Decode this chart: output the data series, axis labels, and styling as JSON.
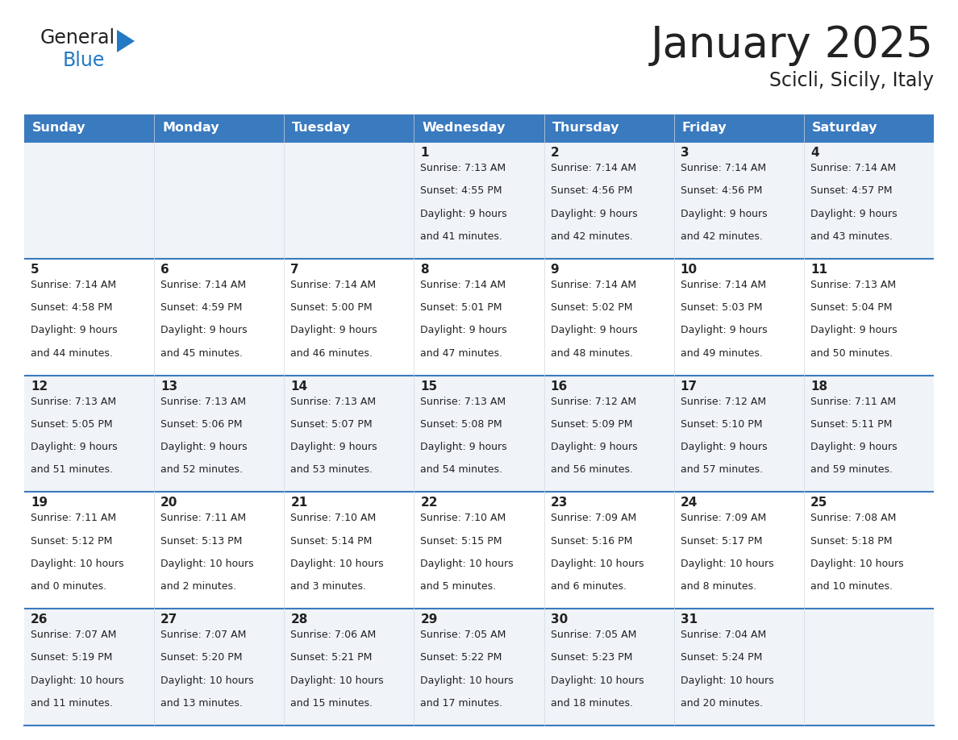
{
  "title": "January 2025",
  "subtitle": "Scicli, Sicily, Italy",
  "header_color": "#3a7abf",
  "header_text_color": "#ffffff",
  "cell_bg_row0": "#f0f4f8",
  "cell_bg_row1": "#ffffff",
  "cell_bg_row2": "#f0f4f8",
  "cell_bg_row3": "#ffffff",
  "cell_bg_row4": "#f0f4f8",
  "divider_color": "#3a7abf",
  "grid_color": "#c0c8d0",
  "text_color": "#222222",
  "days_of_week": [
    "Sunday",
    "Monday",
    "Tuesday",
    "Wednesday",
    "Thursday",
    "Friday",
    "Saturday"
  ],
  "calendar": [
    [
      {
        "day": "",
        "sunrise": "",
        "sunset": "",
        "daylight_h": "",
        "daylight_m": ""
      },
      {
        "day": "",
        "sunrise": "",
        "sunset": "",
        "daylight_h": "",
        "daylight_m": ""
      },
      {
        "day": "",
        "sunrise": "",
        "sunset": "",
        "daylight_h": "",
        "daylight_m": ""
      },
      {
        "day": "1",
        "sunrise": "7:13 AM",
        "sunset": "4:55 PM",
        "daylight_h": "9",
        "daylight_m": "41"
      },
      {
        "day": "2",
        "sunrise": "7:14 AM",
        "sunset": "4:56 PM",
        "daylight_h": "9",
        "daylight_m": "42"
      },
      {
        "day": "3",
        "sunrise": "7:14 AM",
        "sunset": "4:56 PM",
        "daylight_h": "9",
        "daylight_m": "42"
      },
      {
        "day": "4",
        "sunrise": "7:14 AM",
        "sunset": "4:57 PM",
        "daylight_h": "9",
        "daylight_m": "43"
      }
    ],
    [
      {
        "day": "5",
        "sunrise": "7:14 AM",
        "sunset": "4:58 PM",
        "daylight_h": "9",
        "daylight_m": "44"
      },
      {
        "day": "6",
        "sunrise": "7:14 AM",
        "sunset": "4:59 PM",
        "daylight_h": "9",
        "daylight_m": "45"
      },
      {
        "day": "7",
        "sunrise": "7:14 AM",
        "sunset": "5:00 PM",
        "daylight_h": "9",
        "daylight_m": "46"
      },
      {
        "day": "8",
        "sunrise": "7:14 AM",
        "sunset": "5:01 PM",
        "daylight_h": "9",
        "daylight_m": "47"
      },
      {
        "day": "9",
        "sunrise": "7:14 AM",
        "sunset": "5:02 PM",
        "daylight_h": "9",
        "daylight_m": "48"
      },
      {
        "day": "10",
        "sunrise": "7:14 AM",
        "sunset": "5:03 PM",
        "daylight_h": "9",
        "daylight_m": "49"
      },
      {
        "day": "11",
        "sunrise": "7:13 AM",
        "sunset": "5:04 PM",
        "daylight_h": "9",
        "daylight_m": "50"
      }
    ],
    [
      {
        "day": "12",
        "sunrise": "7:13 AM",
        "sunset": "5:05 PM",
        "daylight_h": "9",
        "daylight_m": "51"
      },
      {
        "day": "13",
        "sunrise": "7:13 AM",
        "sunset": "5:06 PM",
        "daylight_h": "9",
        "daylight_m": "52"
      },
      {
        "day": "14",
        "sunrise": "7:13 AM",
        "sunset": "5:07 PM",
        "daylight_h": "9",
        "daylight_m": "53"
      },
      {
        "day": "15",
        "sunrise": "7:13 AM",
        "sunset": "5:08 PM",
        "daylight_h": "9",
        "daylight_m": "54"
      },
      {
        "day": "16",
        "sunrise": "7:12 AM",
        "sunset": "5:09 PM",
        "daylight_h": "9",
        "daylight_m": "56"
      },
      {
        "day": "17",
        "sunrise": "7:12 AM",
        "sunset": "5:10 PM",
        "daylight_h": "9",
        "daylight_m": "57"
      },
      {
        "day": "18",
        "sunrise": "7:11 AM",
        "sunset": "5:11 PM",
        "daylight_h": "9",
        "daylight_m": "59"
      }
    ],
    [
      {
        "day": "19",
        "sunrise": "7:11 AM",
        "sunset": "5:12 PM",
        "daylight_h": "10",
        "daylight_m": "0"
      },
      {
        "day": "20",
        "sunrise": "7:11 AM",
        "sunset": "5:13 PM",
        "daylight_h": "10",
        "daylight_m": "2"
      },
      {
        "day": "21",
        "sunrise": "7:10 AM",
        "sunset": "5:14 PM",
        "daylight_h": "10",
        "daylight_m": "3"
      },
      {
        "day": "22",
        "sunrise": "7:10 AM",
        "sunset": "5:15 PM",
        "daylight_h": "10",
        "daylight_m": "5"
      },
      {
        "day": "23",
        "sunrise": "7:09 AM",
        "sunset": "5:16 PM",
        "daylight_h": "10",
        "daylight_m": "6"
      },
      {
        "day": "24",
        "sunrise": "7:09 AM",
        "sunset": "5:17 PM",
        "daylight_h": "10",
        "daylight_m": "8"
      },
      {
        "day": "25",
        "sunrise": "7:08 AM",
        "sunset": "5:18 PM",
        "daylight_h": "10",
        "daylight_m": "10"
      }
    ],
    [
      {
        "day": "26",
        "sunrise": "7:07 AM",
        "sunset": "5:19 PM",
        "daylight_h": "10",
        "daylight_m": "11"
      },
      {
        "day": "27",
        "sunrise": "7:07 AM",
        "sunset": "5:20 PM",
        "daylight_h": "10",
        "daylight_m": "13"
      },
      {
        "day": "28",
        "sunrise": "7:06 AM",
        "sunset": "5:21 PM",
        "daylight_h": "10",
        "daylight_m": "15"
      },
      {
        "day": "29",
        "sunrise": "7:05 AM",
        "sunset": "5:22 PM",
        "daylight_h": "10",
        "daylight_m": "17"
      },
      {
        "day": "30",
        "sunrise": "7:05 AM",
        "sunset": "5:23 PM",
        "daylight_h": "10",
        "daylight_m": "18"
      },
      {
        "day": "31",
        "sunrise": "7:04 AM",
        "sunset": "5:24 PM",
        "daylight_h": "10",
        "daylight_m": "20"
      },
      {
        "day": "",
        "sunrise": "",
        "sunset": "",
        "daylight_h": "",
        "daylight_m": ""
      }
    ]
  ],
  "logo_text1": "General",
  "logo_text2": "Blue",
  "logo_color1": "#222222",
  "logo_color2": "#2379c4",
  "fig_width": 11.88,
  "fig_height": 9.18,
  "dpi": 100
}
